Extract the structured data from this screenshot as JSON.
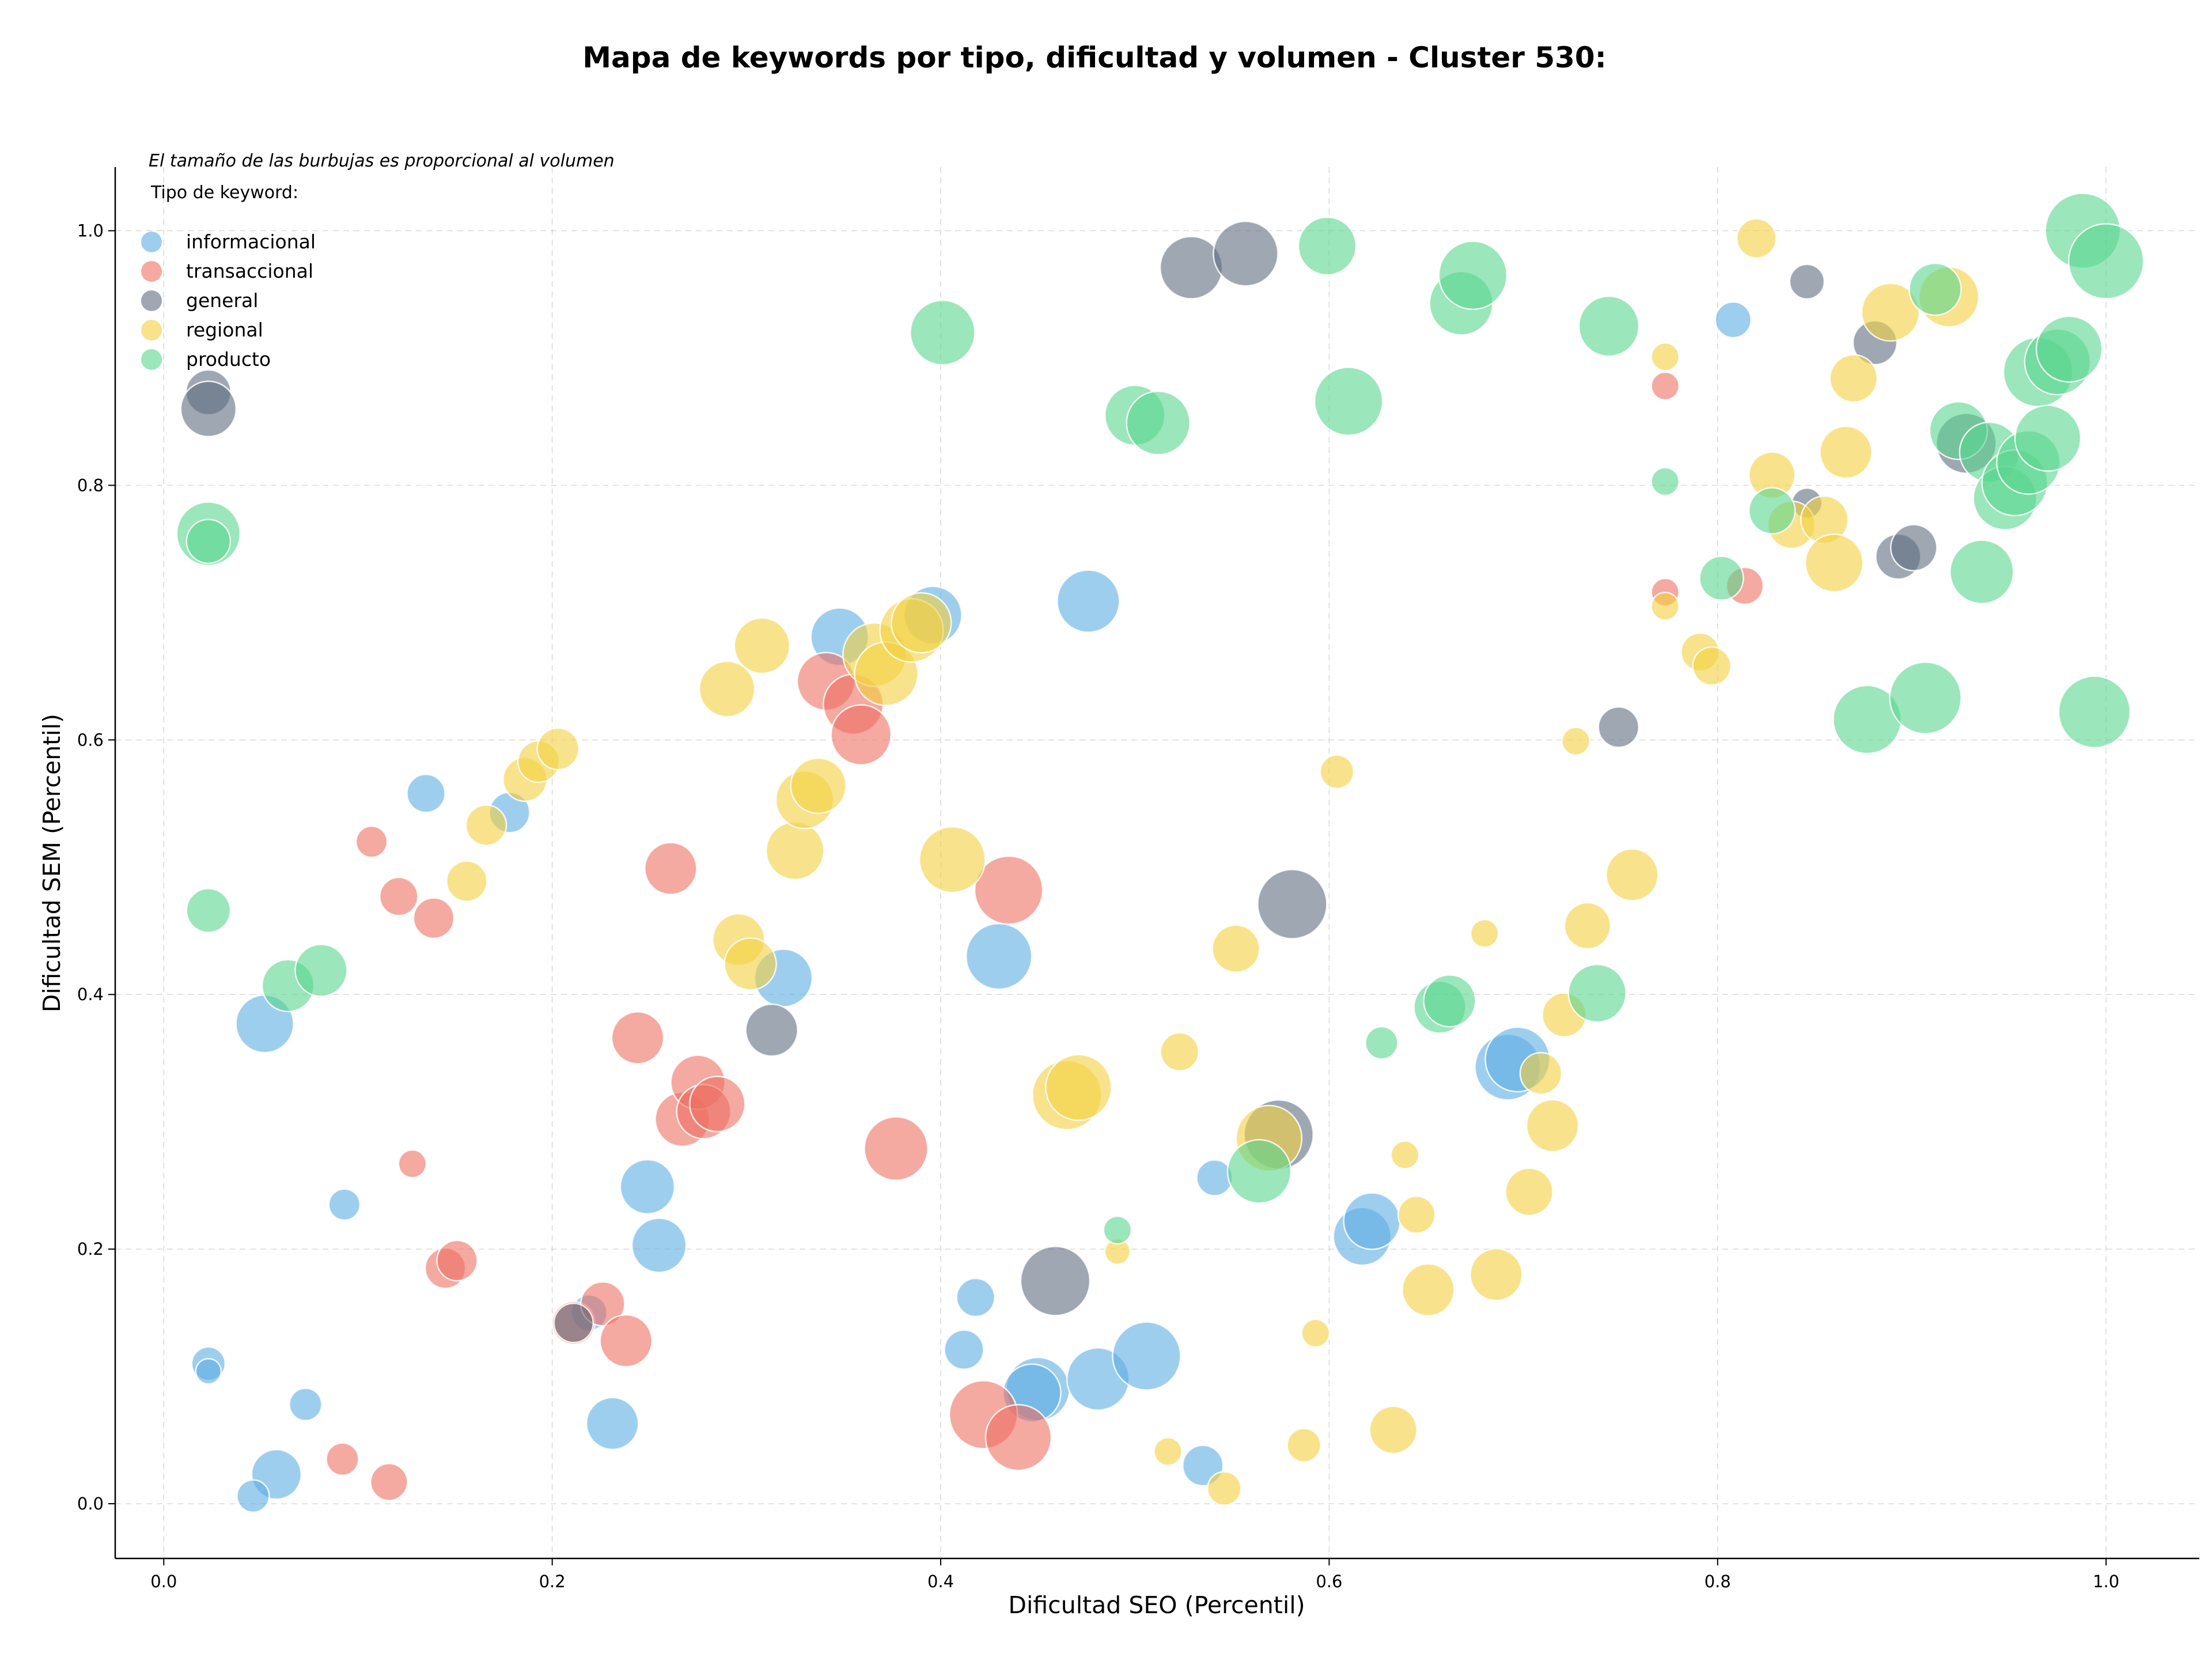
{
  "chart_data": {
    "type": "scatter",
    "title": "Mapa de keywords por tipo, dificultad y volumen - Cluster 530:",
    "xlabel": "Dificultad SEO (Percentil)",
    "ylabel": "Dificultad SEM (Percentil)",
    "xlim": [
      -0.025,
      1.048
    ],
    "ylim": [
      -0.043,
      1.05
    ],
    "xticks": [
      "0.0",
      "0.2",
      "0.4",
      "0.6",
      "0.8",
      "1.0"
    ],
    "yticks": [
      "0.0",
      "0.2",
      "0.4",
      "0.6",
      "0.8",
      "1.0"
    ],
    "grid": true,
    "note": "El tamaño de las burbujas es proporcional al volumen",
    "legend_title": "Tipo de keyword:",
    "legend_position": "top-left",
    "series": [
      {
        "name": "informacional",
        "color": "#5dade2",
        "points": [
          {
            "x": 0.135,
            "y": 0.558,
            "size": 33
          },
          {
            "x": 0.178,
            "y": 0.543,
            "size": 35
          },
          {
            "x": 0.052,
            "y": 0.377,
            "size": 50
          },
          {
            "x": 0.093,
            "y": 0.235,
            "size": 27
          },
          {
            "x": 0.023,
            "y": 0.11,
            "size": 29
          },
          {
            "x": 0.023,
            "y": 0.104,
            "size": 22
          },
          {
            "x": 0.073,
            "y": 0.078,
            "size": 28
          },
          {
            "x": 0.058,
            "y": 0.023,
            "size": 43
          },
          {
            "x": 0.046,
            "y": 0.006,
            "size": 28
          },
          {
            "x": 0.231,
            "y": 0.063,
            "size": 45
          },
          {
            "x": 0.219,
            "y": 0.15,
            "size": 31
          },
          {
            "x": 0.249,
            "y": 0.249,
            "size": 47
          },
          {
            "x": 0.255,
            "y": 0.203,
            "size": 47
          },
          {
            "x": 0.319,
            "y": 0.413,
            "size": 50
          },
          {
            "x": 0.348,
            "y": 0.681,
            "size": 50
          },
          {
            "x": 0.396,
            "y": 0.698,
            "size": 50
          },
          {
            "x": 0.476,
            "y": 0.709,
            "size": 54
          },
          {
            "x": 0.43,
            "y": 0.43,
            "size": 57
          },
          {
            "x": 0.418,
            "y": 0.162,
            "size": 33
          },
          {
            "x": 0.412,
            "y": 0.121,
            "size": 34
          },
          {
            "x": 0.45,
            "y": 0.09,
            "size": 55
          },
          {
            "x": 0.447,
            "y": 0.087,
            "size": 50
          },
          {
            "x": 0.481,
            "y": 0.098,
            "size": 54
          },
          {
            "x": 0.506,
            "y": 0.116,
            "size": 59
          },
          {
            "x": 0.535,
            "y": 0.03,
            "size": 35
          },
          {
            "x": 0.541,
            "y": 0.256,
            "size": 31
          },
          {
            "x": 0.617,
            "y": 0.21,
            "size": 50
          },
          {
            "x": 0.622,
            "y": 0.222,
            "size": 49
          },
          {
            "x": 0.692,
            "y": 0.343,
            "size": 57
          },
          {
            "x": 0.697,
            "y": 0.349,
            "size": 56
          },
          {
            "x": 0.808,
            "y": 0.93,
            "size": 31
          }
        ]
      },
      {
        "name": "transaccional",
        "color": "#ec7063",
        "points": [
          {
            "x": 0.107,
            "y": 0.52,
            "size": 27
          },
          {
            "x": 0.121,
            "y": 0.477,
            "size": 33
          },
          {
            "x": 0.139,
            "y": 0.46,
            "size": 35
          },
          {
            "x": 0.128,
            "y": 0.267,
            "size": 24
          },
          {
            "x": 0.145,
            "y": 0.185,
            "size": 35
          },
          {
            "x": 0.151,
            "y": 0.191,
            "size": 35
          },
          {
            "x": 0.092,
            "y": 0.035,
            "size": 28
          },
          {
            "x": 0.116,
            "y": 0.017,
            "size": 32
          },
          {
            "x": 0.211,
            "y": 0.142,
            "size": 37
          },
          {
            "x": 0.226,
            "y": 0.157,
            "size": 38
          },
          {
            "x": 0.238,
            "y": 0.128,
            "size": 45
          },
          {
            "x": 0.244,
            "y": 0.366,
            "size": 45
          },
          {
            "x": 0.261,
            "y": 0.499,
            "size": 45
          },
          {
            "x": 0.267,
            "y": 0.302,
            "size": 47
          },
          {
            "x": 0.275,
            "y": 0.331,
            "size": 47
          },
          {
            "x": 0.278,
            "y": 0.308,
            "size": 47
          },
          {
            "x": 0.285,
            "y": 0.314,
            "size": 48
          },
          {
            "x": 0.341,
            "y": 0.646,
            "size": 50
          },
          {
            "x": 0.355,
            "y": 0.628,
            "size": 52
          },
          {
            "x": 0.359,
            "y": 0.604,
            "size": 52
          },
          {
            "x": 0.377,
            "y": 0.279,
            "size": 55
          },
          {
            "x": 0.435,
            "y": 0.482,
            "size": 59
          },
          {
            "x": 0.422,
            "y": 0.07,
            "size": 59
          },
          {
            "x": 0.44,
            "y": 0.052,
            "size": 57
          },
          {
            "x": 0.773,
            "y": 0.878,
            "size": 24
          },
          {
            "x": 0.773,
            "y": 0.716,
            "size": 24
          },
          {
            "x": 0.814,
            "y": 0.721,
            "size": 32
          }
        ]
      },
      {
        "name": "general",
        "color": "#5d6d7e",
        "points": [
          {
            "x": 0.023,
            "y": 0.873,
            "size": 39
          },
          {
            "x": 0.023,
            "y": 0.86,
            "size": 48
          },
          {
            "x": 0.313,
            "y": 0.372,
            "size": 45
          },
          {
            "x": 0.211,
            "y": 0.142,
            "size": 34
          },
          {
            "x": 0.459,
            "y": 0.175,
            "size": 60
          },
          {
            "x": 0.529,
            "y": 0.971,
            "size": 54
          },
          {
            "x": 0.557,
            "y": 0.982,
            "size": 56
          },
          {
            "x": 0.581,
            "y": 0.471,
            "size": 60
          },
          {
            "x": 0.574,
            "y": 0.29,
            "size": 60
          },
          {
            "x": 0.749,
            "y": 0.61,
            "size": 35
          },
          {
            "x": 0.846,
            "y": 0.96,
            "size": 30
          },
          {
            "x": 0.881,
            "y": 0.912,
            "size": 38
          },
          {
            "x": 0.846,
            "y": 0.786,
            "size": 26
          },
          {
            "x": 0.893,
            "y": 0.744,
            "size": 39
          },
          {
            "x": 0.901,
            "y": 0.751,
            "size": 40
          },
          {
            "x": 0.928,
            "y": 0.833,
            "size": 52
          }
        ]
      },
      {
        "name": "regional",
        "color": "#f4d03f",
        "points": [
          {
            "x": 0.186,
            "y": 0.569,
            "size": 38
          },
          {
            "x": 0.193,
            "y": 0.583,
            "size": 36
          },
          {
            "x": 0.203,
            "y": 0.593,
            "size": 36
          },
          {
            "x": 0.166,
            "y": 0.533,
            "size": 35
          },
          {
            "x": 0.156,
            "y": 0.489,
            "size": 35
          },
          {
            "x": 0.29,
            "y": 0.64,
            "size": 48
          },
          {
            "x": 0.308,
            "y": 0.674,
            "size": 48
          },
          {
            "x": 0.325,
            "y": 0.513,
            "size": 50
          },
          {
            "x": 0.33,
            "y": 0.553,
            "size": 50
          },
          {
            "x": 0.337,
            "y": 0.564,
            "size": 48
          },
          {
            "x": 0.296,
            "y": 0.443,
            "size": 45
          },
          {
            "x": 0.302,
            "y": 0.424,
            "size": 45
          },
          {
            "x": 0.366,
            "y": 0.667,
            "size": 55
          },
          {
            "x": 0.372,
            "y": 0.652,
            "size": 55
          },
          {
            "x": 0.385,
            "y": 0.686,
            "size": 55
          },
          {
            "x": 0.39,
            "y": 0.692,
            "size": 52
          },
          {
            "x": 0.406,
            "y": 0.506,
            "size": 57
          },
          {
            "x": 0.465,
            "y": 0.321,
            "size": 60
          },
          {
            "x": 0.471,
            "y": 0.327,
            "size": 57
          },
          {
            "x": 0.491,
            "y": 0.198,
            "size": 22
          },
          {
            "x": 0.523,
            "y": 0.355,
            "size": 33
          },
          {
            "x": 0.517,
            "y": 0.041,
            "size": 24
          },
          {
            "x": 0.546,
            "y": 0.012,
            "size": 29
          },
          {
            "x": 0.552,
            "y": 0.436,
            "size": 41
          },
          {
            "x": 0.569,
            "y": 0.287,
            "size": 57
          },
          {
            "x": 0.587,
            "y": 0.046,
            "size": 29
          },
          {
            "x": 0.593,
            "y": 0.134,
            "size": 24
          },
          {
            "x": 0.604,
            "y": 0.575,
            "size": 29
          },
          {
            "x": 0.633,
            "y": 0.058,
            "size": 41
          },
          {
            "x": 0.639,
            "y": 0.274,
            "size": 24
          },
          {
            "x": 0.645,
            "y": 0.227,
            "size": 32
          },
          {
            "x": 0.651,
            "y": 0.168,
            "size": 45
          },
          {
            "x": 0.68,
            "y": 0.448,
            "size": 24
          },
          {
            "x": 0.686,
            "y": 0.18,
            "size": 45
          },
          {
            "x": 0.703,
            "y": 0.245,
            "size": 41
          },
          {
            "x": 0.709,
            "y": 0.338,
            "size": 36
          },
          {
            "x": 0.715,
            "y": 0.297,
            "size": 45
          },
          {
            "x": 0.721,
            "y": 0.384,
            "size": 38
          },
          {
            "x": 0.727,
            "y": 0.599,
            "size": 24
          },
          {
            "x": 0.733,
            "y": 0.454,
            "size": 40
          },
          {
            "x": 0.756,
            "y": 0.494,
            "size": 45
          },
          {
            "x": 0.773,
            "y": 0.901,
            "size": 24
          },
          {
            "x": 0.773,
            "y": 0.705,
            "size": 24
          },
          {
            "x": 0.791,
            "y": 0.669,
            "size": 33
          },
          {
            "x": 0.797,
            "y": 0.658,
            "size": 33
          },
          {
            "x": 0.82,
            "y": 0.994,
            "size": 34
          },
          {
            "x": 0.828,
            "y": 0.808,
            "size": 40
          },
          {
            "x": 0.838,
            "y": 0.769,
            "size": 41
          },
          {
            "x": 0.855,
            "y": 0.773,
            "size": 41
          },
          {
            "x": 0.86,
            "y": 0.739,
            "size": 50
          },
          {
            "x": 0.866,
            "y": 0.826,
            "size": 45
          },
          {
            "x": 0.87,
            "y": 0.884,
            "size": 41
          },
          {
            "x": 0.889,
            "y": 0.936,
            "size": 50
          },
          {
            "x": 0.919,
            "y": 0.948,
            "size": 52
          }
        ]
      },
      {
        "name": "producto",
        "color": "#58d68d",
        "points": [
          {
            "x": 0.023,
            "y": 0.762,
            "size": 55
          },
          {
            "x": 0.023,
            "y": 0.756,
            "size": 38
          },
          {
            "x": 0.023,
            "y": 0.466,
            "size": 38
          },
          {
            "x": 0.064,
            "y": 0.407,
            "size": 45
          },
          {
            "x": 0.081,
            "y": 0.419,
            "size": 45
          },
          {
            "x": 0.401,
            "y": 0.92,
            "size": 56
          },
          {
            "x": 0.491,
            "y": 0.215,
            "size": 24
          },
          {
            "x": 0.5,
            "y": 0.855,
            "size": 52
          },
          {
            "x": 0.512,
            "y": 0.849,
            "size": 55
          },
          {
            "x": 0.564,
            "y": 0.261,
            "size": 55
          },
          {
            "x": 0.599,
            "y": 0.988,
            "size": 50
          },
          {
            "x": 0.61,
            "y": 0.866,
            "size": 59
          },
          {
            "x": 0.627,
            "y": 0.362,
            "size": 28
          },
          {
            "x": 0.657,
            "y": 0.39,
            "size": 45
          },
          {
            "x": 0.662,
            "y": 0.395,
            "size": 45
          },
          {
            "x": 0.668,
            "y": 0.943,
            "size": 55
          },
          {
            "x": 0.674,
            "y": 0.965,
            "size": 59
          },
          {
            "x": 0.738,
            "y": 0.401,
            "size": 50
          },
          {
            "x": 0.744,
            "y": 0.925,
            "size": 52
          },
          {
            "x": 0.773,
            "y": 0.803,
            "size": 24
          },
          {
            "x": 0.802,
            "y": 0.727,
            "size": 38
          },
          {
            "x": 0.828,
            "y": 0.78,
            "size": 40
          },
          {
            "x": 0.877,
            "y": 0.616,
            "size": 59
          },
          {
            "x": 0.907,
            "y": 0.633,
            "size": 62
          },
          {
            "x": 0.912,
            "y": 0.954,
            "size": 45
          },
          {
            "x": 0.924,
            "y": 0.843,
            "size": 50
          },
          {
            "x": 0.936,
            "y": 0.732,
            "size": 55
          },
          {
            "x": 0.94,
            "y": 0.826,
            "size": 52
          },
          {
            "x": 0.948,
            "y": 0.79,
            "size": 55
          },
          {
            "x": 0.953,
            "y": 0.802,
            "size": 57
          },
          {
            "x": 0.96,
            "y": 0.818,
            "size": 55
          },
          {
            "x": 0.965,
            "y": 0.889,
            "size": 60
          },
          {
            "x": 0.97,
            "y": 0.837,
            "size": 57
          },
          {
            "x": 0.975,
            "y": 0.897,
            "size": 57
          },
          {
            "x": 0.981,
            "y": 0.907,
            "size": 57
          },
          {
            "x": 0.988,
            "y": 1.0,
            "size": 65
          },
          {
            "x": 0.994,
            "y": 0.622,
            "size": 62
          },
          {
            "x": 1.0,
            "y": 0.976,
            "size": 65
          }
        ]
      }
    ]
  }
}
